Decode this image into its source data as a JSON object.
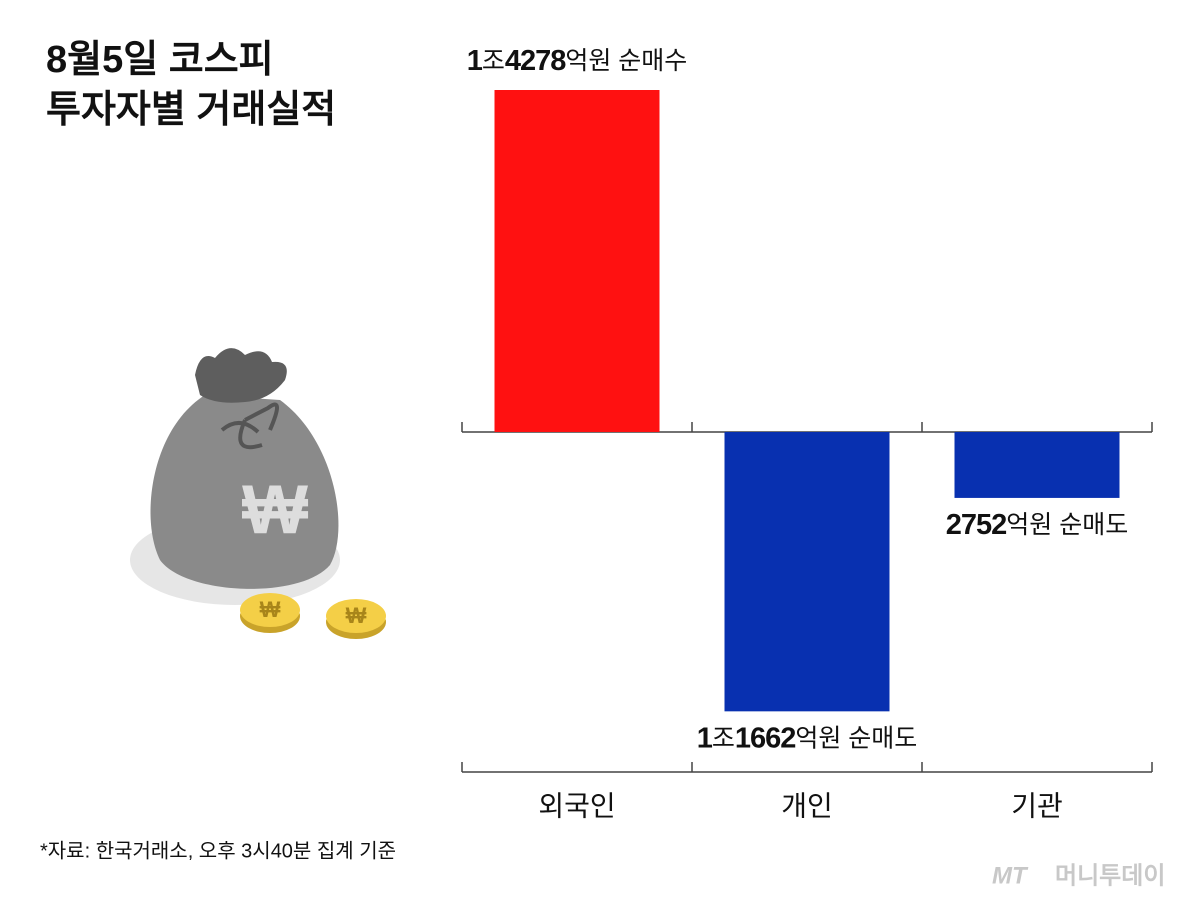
{
  "chart_data": {
    "type": "bar",
    "title": [
      "8월5일 코스피",
      "투자자별 거래실적"
    ],
    "categories": [
      "외국인",
      "개인",
      "기관"
    ],
    "values": [
      14278,
      -11662,
      -2752
    ],
    "value_labels": [
      "1조4278억원 순매수",
      "1조1662억원 순매도",
      "2752억원 순매도"
    ],
    "colors": [
      "#ff1111",
      "#0830b0",
      "#0830b0"
    ],
    "source": "*자료: 한국거래소, 오후 3시40분 집계 기준",
    "logo": [
      "MT",
      "머니투데이"
    ]
  }
}
